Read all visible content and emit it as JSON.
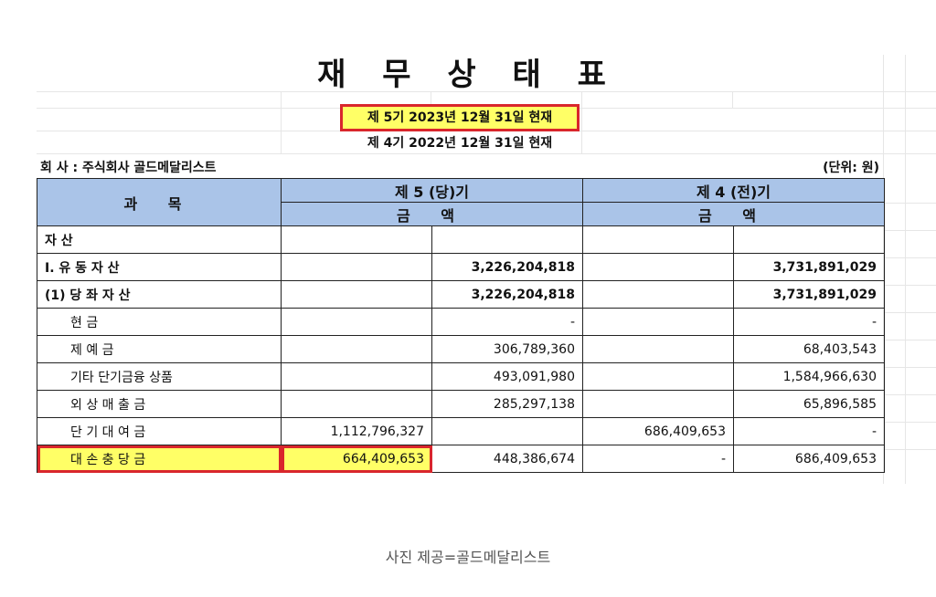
{
  "document": {
    "title": "재 무 상 태 표",
    "period_current": "제 5기 2023년 12월 31일 현재",
    "period_prior": "제 4기 2022년 12월 31일 현재",
    "company": "회   사 : 주식회사 골드메달리스트",
    "unit": "(단위: 원)"
  },
  "table": {
    "header_item": "과   목",
    "header_current": "제 5 (당)기",
    "header_prior": "제 4 (전)기",
    "header_amount": "금   액",
    "rows": [
      {
        "label": "자       산",
        "c1": "",
        "c2": "",
        "p1": "",
        "p2": ""
      },
      {
        "label": "I. 유 동 자 산",
        "c1": "",
        "c2": "3,226,204,818",
        "p1": "",
        "p2": "3,731,891,029"
      },
      {
        "label": "(1) 당 좌 자 산",
        "c1": "",
        "c2": "3,226,204,818",
        "p1": "",
        "p2": "3,731,891,029"
      },
      {
        "label": "현          금",
        "c1": "",
        "c2": "-",
        "p1": "",
        "p2": "-"
      },
      {
        "label": "제    예    금",
        "c1": "",
        "c2": "306,789,360",
        "p1": "",
        "p2": "68,403,543"
      },
      {
        "label": "기타 단기금융 상품",
        "c1": "",
        "c2": "493,091,980",
        "p1": "",
        "p2": "1,584,966,630"
      },
      {
        "label": "외 상 매 출 금",
        "c1": "",
        "c2": "285,297,138",
        "p1": "",
        "p2": "65,896,585"
      },
      {
        "label": "단 기 대 여 금",
        "c1": "1,112,796,327",
        "c2": "",
        "p1": "686,409,653",
        "p2": "-"
      },
      {
        "label": "대 손 충 당 금",
        "c1": "664,409,653",
        "c2": "448,386,674",
        "p1": "-",
        "p2": "686,409,653"
      }
    ]
  },
  "caption": "사진 제공=골드메달리스트",
  "colors": {
    "header_bg": "#aac4e8",
    "highlight": "#ffff66",
    "highlight_border": "#d9262c"
  }
}
